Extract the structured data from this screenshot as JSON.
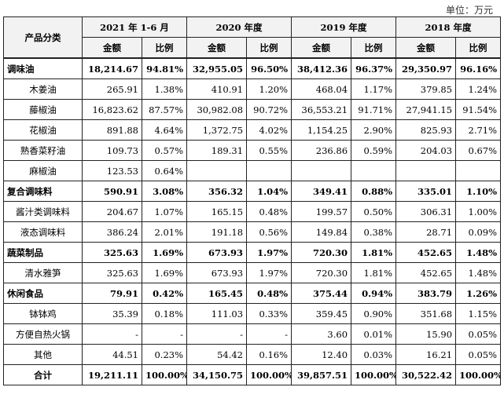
{
  "unit_label": "单位：万元",
  "header": {
    "category_label": "产品分类",
    "periods": [
      "2021 年 1-6 月",
      "2020 年度",
      "2019 年度",
      "2018 年度"
    ],
    "amount_label": "金额",
    "ratio_label": "比例"
  },
  "rows": [
    {
      "kind": "group",
      "name": "调味油",
      "cells": [
        "18,214.67",
        "94.81%",
        "32,955.05",
        "96.50%",
        "38,412.36",
        "96.37%",
        "29,350.97",
        "96.16%"
      ]
    },
    {
      "kind": "sub",
      "name": "木姜油",
      "cells": [
        "265.91",
        "1.38%",
        "410.91",
        "1.20%",
        "468.04",
        "1.17%",
        "379.85",
        "1.24%"
      ]
    },
    {
      "kind": "sub",
      "name": "藤椒油",
      "cells": [
        "16,823.62",
        "87.57%",
        "30,982.08",
        "90.72%",
        "36,553.21",
        "91.71%",
        "27,941.15",
        "91.54%"
      ]
    },
    {
      "kind": "sub",
      "name": "花椒油",
      "cells": [
        "891.88",
        "4.64%",
        "1,372.75",
        "4.02%",
        "1,154.25",
        "2.90%",
        "825.93",
        "2.71%"
      ]
    },
    {
      "kind": "sub",
      "name": "熟香菜籽油",
      "cells": [
        "109.73",
        "0.57%",
        "189.31",
        "0.55%",
        "236.86",
        "0.59%",
        "204.03",
        "0.67%"
      ]
    },
    {
      "kind": "sub",
      "name": "麻椒油",
      "cells": [
        "123.53",
        "0.64%",
        "",
        "",
        "",
        "",
        "",
        ""
      ]
    },
    {
      "kind": "group",
      "name": "复合调味料",
      "cells": [
        "590.91",
        "3.08%",
        "356.32",
        "1.04%",
        "349.41",
        "0.88%",
        "335.01",
        "1.10%"
      ]
    },
    {
      "kind": "sub",
      "name": "酱汁类调味料",
      "cells": [
        "204.67",
        "1.07%",
        "165.15",
        "0.48%",
        "199.57",
        "0.50%",
        "306.31",
        "1.00%"
      ]
    },
    {
      "kind": "sub",
      "name": "液态调味料",
      "cells": [
        "386.24",
        "2.01%",
        "191.18",
        "0.56%",
        "149.84",
        "0.38%",
        "28.71",
        "0.09%"
      ]
    },
    {
      "kind": "group",
      "name": "蔬菜制品",
      "cells": [
        "325.63",
        "1.69%",
        "673.93",
        "1.97%",
        "720.30",
        "1.81%",
        "452.65",
        "1.48%"
      ]
    },
    {
      "kind": "sub",
      "name": "清水雅笋",
      "cells": [
        "325.63",
        "1.69%",
        "673.93",
        "1.97%",
        "720.30",
        "1.81%",
        "452.65",
        "1.48%"
      ]
    },
    {
      "kind": "group",
      "name": "休闲食品",
      "cells": [
        "79.91",
        "0.42%",
        "165.45",
        "0.48%",
        "375.44",
        "0.94%",
        "383.79",
        "1.26%"
      ]
    },
    {
      "kind": "sub",
      "name": "钵钵鸡",
      "cells": [
        "35.39",
        "0.18%",
        "111.03",
        "0.33%",
        "359.45",
        "0.90%",
        "351.68",
        "1.15%"
      ]
    },
    {
      "kind": "sub",
      "name": "方便自热火锅",
      "cells": [
        "-",
        "-",
        "-",
        "-",
        "3.60",
        "0.01%",
        "15.90",
        "0.05%"
      ]
    },
    {
      "kind": "sub",
      "name": "其他",
      "cells": [
        "44.51",
        "0.23%",
        "54.42",
        "0.16%",
        "12.40",
        "0.03%",
        "16.21",
        "0.05%"
      ]
    },
    {
      "kind": "total",
      "name": "合计",
      "cells": [
        "19,211.11",
        "100.00%",
        "34,150.75",
        "100.00%",
        "39,857.51",
        "100.00%",
        "30,522.42",
        "100.00%"
      ]
    }
  ]
}
